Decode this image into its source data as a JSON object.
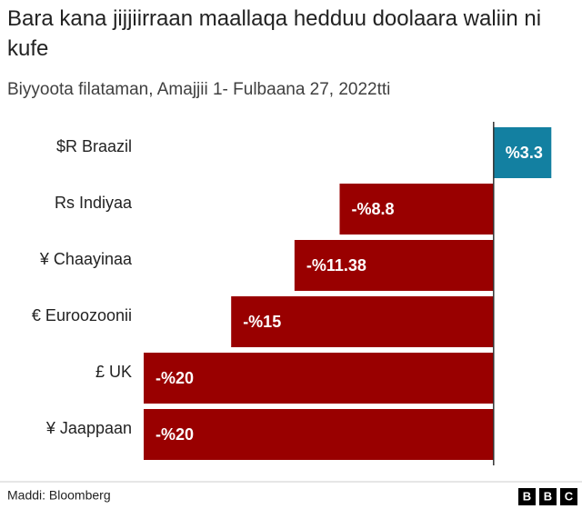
{
  "chart_data": {
    "type": "bar",
    "orientation": "horizontal",
    "title": "Bara kana jijjiirraan maallaqa hedduu doolaara waliin ni kufe",
    "subtitle": "Biyyoota filataman, Amajjii 1- Fulbaana 27, 2022tti",
    "categories": [
      "$R Braazil",
      "Rs Indiyaa",
      "¥ Chaayinaa",
      "€ Euroozoonii",
      "£ UK",
      "¥ Jaappaan"
    ],
    "values": [
      3.3,
      -8.8,
      -11.38,
      -15,
      -20,
      -20
    ],
    "value_labels": [
      "%3.3",
      "-%8.8",
      "-%11.38",
      "-%15",
      "-%20",
      "-%20"
    ],
    "color_positive": "#1380a1",
    "color_negative": "#990000",
    "xlim": [
      -20,
      5
    ]
  },
  "footer": {
    "source": "Maddi: Bloomberg",
    "logo": [
      "B",
      "B",
      "C"
    ]
  }
}
